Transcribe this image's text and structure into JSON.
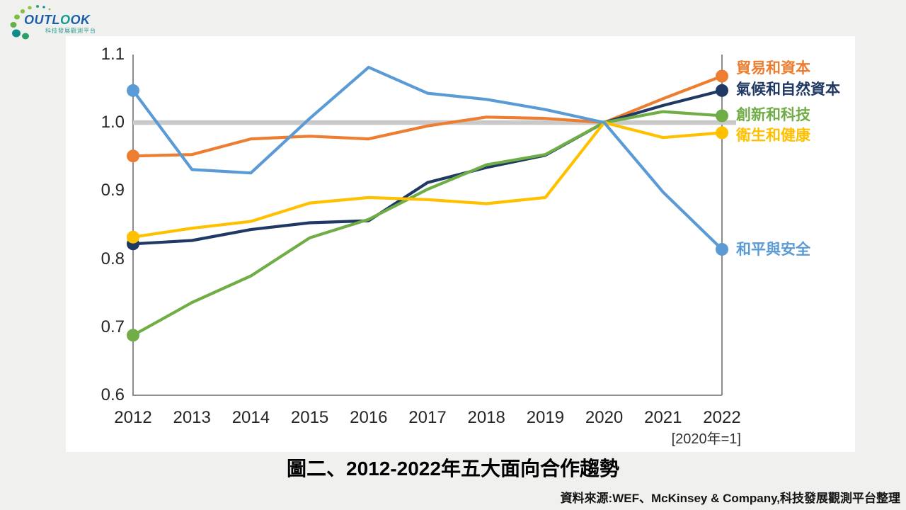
{
  "page": {
    "background": "#F0F0EF",
    "panel_bg": "#FFFFFF"
  },
  "logo": {
    "word_start": "OUTL",
    "word_accent": "O",
    "word_end": "OK",
    "subtext": "科技發展觀測平台",
    "text_color": "#1C5FA8",
    "accent_color": "#12998F",
    "subtext_color": "#2E9C8F"
  },
  "chart_data": {
    "type": "line",
    "x": [
      2012,
      2013,
      2014,
      2015,
      2016,
      2017,
      2018,
      2019,
      2020,
      2021,
      2022
    ],
    "series": [
      {
        "name": "貿易和資本",
        "color": "#ED7D31",
        "values": [
          0.951,
          0.953,
          0.976,
          0.98,
          0.976,
          0.995,
          1.008,
          1.006,
          1.0,
          1.035,
          1.068
        ]
      },
      {
        "name": "氣候和自然資本",
        "color": "#1F3864",
        "values": [
          0.822,
          0.827,
          0.843,
          0.853,
          0.856,
          0.912,
          0.934,
          0.952,
          1.0,
          1.025,
          1.047
        ]
      },
      {
        "name": "創新和科技",
        "color": "#70AD47",
        "values": [
          0.688,
          0.736,
          0.775,
          0.831,
          0.858,
          0.902,
          0.938,
          0.953,
          1.0,
          1.016,
          1.01
        ]
      },
      {
        "name": "衛生和健康",
        "color": "#FFC000",
        "values": [
          0.832,
          0.845,
          0.855,
          0.882,
          0.89,
          0.887,
          0.881,
          0.89,
          1.0,
          0.978,
          0.985
        ]
      },
      {
        "name": "和平與安全",
        "color": "#5B9BD5",
        "values": [
          1.047,
          0.931,
          0.926,
          1.006,
          1.081,
          1.043,
          1.034,
          1.019,
          1.0,
          0.898,
          0.814
        ]
      }
    ],
    "reference_line": {
      "value": 1.0,
      "color": "#C9C9C9"
    },
    "ylim": [
      0.6,
      1.1
    ],
    "yticks": [
      "1.1",
      "1.0",
      "0.9",
      "0.8",
      "0.7",
      "0.6"
    ],
    "xticks": [
      "2012",
      "2013",
      "2014",
      "2015",
      "2016",
      "2017",
      "2018",
      "2019",
      "2020",
      "2021",
      "2022"
    ],
    "axis_note": "[2020年=1]",
    "grid": "off",
    "legend_position": "right",
    "axis_color": "#7F7F7F"
  },
  "caption": "圖二、2012-2022年五大面向合作趨勢",
  "source": "資料來源:WEF、McKinsey & Company,科技發展觀測平台整理"
}
